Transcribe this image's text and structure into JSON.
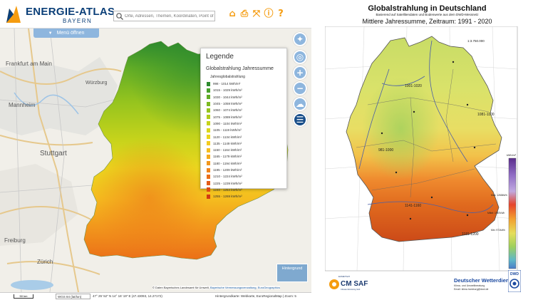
{
  "energie_atlas": {
    "logo": {
      "title": "ENERGIE-ATLAS",
      "subtitle": "BAYERN"
    },
    "search": {
      "placeholder": "Orte, Adressen, Themen, Koordinaten, Point of"
    },
    "header_icons": [
      "home-icon",
      "print-icon",
      "fullscreen-icon",
      "info-icon",
      "help-icon"
    ],
    "menu_button": "Menü öffnen",
    "map_controls": [
      "compass-icon",
      "zoom-in-icon",
      "zoom-out-icon",
      "layers-icon",
      "legend-list-icon"
    ],
    "legend": {
      "title": "Legende",
      "subtitle": "Globalstrahlung Jahressumme",
      "unit_label": "Jahresglobalstrahlung",
      "items": [
        {
          "label": "998 - 1014 kWh/m²",
          "color": "#2e8b2e"
        },
        {
          "label": "1015 - 1029 kWh/m²",
          "color": "#47a12a"
        },
        {
          "label": "1030 - 1044 kWh/m²",
          "color": "#62ad26"
        },
        {
          "label": "1045 - 1059 kWh/m²",
          "color": "#7cba22"
        },
        {
          "label": "1060 - 1074 kWh/m²",
          "color": "#96c41e"
        },
        {
          "label": "1075 - 1089 kWh/m²",
          "color": "#b0cc1c"
        },
        {
          "label": "1090 - 1104 kWh/m²",
          "color": "#c6d31b"
        },
        {
          "label": "1105 - 1119 kWh/m²",
          "color": "#dbd61d"
        },
        {
          "label": "1120 - 1134 kWh/m²",
          "color": "#ebd61e"
        },
        {
          "label": "1135 - 1149 kWh/m²",
          "color": "#f3cc20"
        },
        {
          "label": "1150 - 1164 kWh/m²",
          "color": "#f5bd1f"
        },
        {
          "label": "1165 - 1179 kWh/m²",
          "color": "#f4ab1e"
        },
        {
          "label": "1180 - 1194 kWh/m²",
          "color": "#f2971c"
        },
        {
          "label": "1195 - 1209 kWh/m²",
          "color": "#ef841a"
        },
        {
          "label": "1210 - 1224 kWh/m²",
          "color": "#eb7018"
        },
        {
          "label": "1225 - 1239 kWh/m²",
          "color": "#e45c16"
        },
        {
          "label": "1240 - 1254 kWh/m²",
          "color": "#dc4a14"
        },
        {
          "label": "1255 - 1269 kWh/m²",
          "color": "#d13a12"
        }
      ]
    },
    "map_labels": [
      "Frankfurt am Main",
      "Mannheim",
      "Stuttgart",
      "Freiburg",
      "Zürich",
      "Würzburg"
    ],
    "basemap_button": "Hintergrund",
    "attribution": {
      "text": "© Daten Bayerisches Landesamt für Umwelt,",
      "link1": "Bayerische Vermessungsverwaltung",
      "link2": "EuroGeographics"
    },
    "footer": {
      "scale": "50 km",
      "crs": "WGS 84 (lat/lon)",
      "coordinates": "47° 25' 52\" N 14° 16' 19\" E (47.43093, 14.27172)",
      "basemap": "Hintergrundkarte: Webkarte, EuroRegionalMap | Zoom: 5"
    }
  },
  "dwd": {
    "title": "Globalstrahlung in Deutschland",
    "subtitle": "Basierend auf Satellitendaten und Bodenwerte aus dem DWD-Messnetz",
    "period": "Mittlere Jahressumme, Zeitraum: 1991 - 2020",
    "scale_text": "1:3.750.000",
    "zone_labels": [
      "1001-1020",
      "1081-1100",
      "981-1000",
      "1141-1160",
      "1181-1200"
    ],
    "colorbar_label": "kWh/m²",
    "stats": [
      "Max: 1268kWh",
      "Mittel: 1087kWh",
      "Min: 972kWh"
    ],
    "eumetsat": "EUMETSAT",
    "cmsaf": "CM SAF",
    "cmsaf_small": "Climate Monitoring SAF",
    "org_name": "Deutscher Wetterdienst",
    "address1": "Klima- und Umweltberatung",
    "address2": "Email: klima.hamburg@dwd.de",
    "logo_text": "DWD",
    "colors": {
      "dwd_blue": "#1c4aa0",
      "cmsaf_orange": "#f59c10"
    }
  }
}
